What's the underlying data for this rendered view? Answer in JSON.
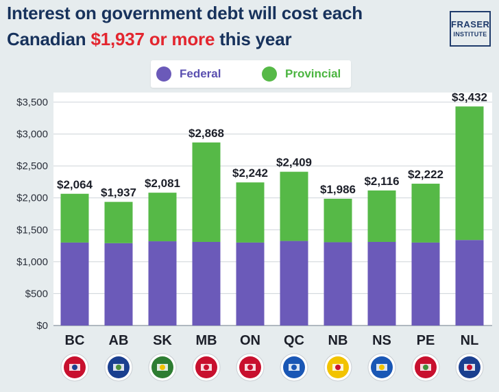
{
  "title": {
    "line1": "Interest on government debt will cost each",
    "line2_pre": "Canadian ",
    "line2_highlight": "$1,937 or more",
    "line2_post": " this year"
  },
  "logo": {
    "line1": "FRASER",
    "line2": "INSTITUTE"
  },
  "legend": {
    "federal": "Federal",
    "provincial": "Provincial"
  },
  "colors": {
    "federal": "#6b5ab9",
    "provincial": "#56b947",
    "title": "#17325c",
    "highlight": "#e3262f",
    "federal_text": "#5a4fb0",
    "provincial_text": "#4bb540"
  },
  "chart_data": {
    "type": "bar",
    "stacked": true,
    "title": "Interest on government debt will cost each Canadian $1,937 or more this year",
    "categories": [
      "BC",
      "AB",
      "SK",
      "MB",
      "ON",
      "QC",
      "NB",
      "NS",
      "PE",
      "NL"
    ],
    "series": [
      {
        "name": "Federal",
        "values": [
          1300,
          1290,
          1320,
          1310,
          1300,
          1325,
          1305,
          1310,
          1300,
          1340
        ]
      },
      {
        "name": "Provincial",
        "values": [
          764,
          647,
          761,
          1558,
          942,
          1084,
          681,
          806,
          922,
          2092
        ]
      }
    ],
    "totals": [
      2064,
      1937,
      2081,
      2868,
      2242,
      2409,
      1986,
      2116,
      2222,
      3432
    ],
    "total_labels": [
      "$2,064",
      "$1,937",
      "$2,081",
      "$2,868",
      "$2,242",
      "$2,409",
      "$1,986",
      "$2,116",
      "$2,222",
      "$3,432"
    ],
    "ylim": [
      0,
      3500
    ],
    "yticks": [
      0,
      500,
      1000,
      1500,
      2000,
      2500,
      3000,
      3500
    ],
    "ytick_labels": [
      "$0",
      "$500",
      "$1,000",
      "$1,500",
      "$2,000",
      "$2,500",
      "$3,000",
      "$3,500"
    ],
    "grid": true,
    "legend_position": "top-center",
    "xlabel": "",
    "ylabel": ""
  },
  "flag_icons": [
    "bc-flag-icon",
    "ab-flag-icon",
    "sk-flag-icon",
    "mb-flag-icon",
    "on-flag-icon",
    "qc-flag-icon",
    "nb-flag-icon",
    "ns-flag-icon",
    "pe-flag-icon",
    "nl-flag-icon"
  ]
}
